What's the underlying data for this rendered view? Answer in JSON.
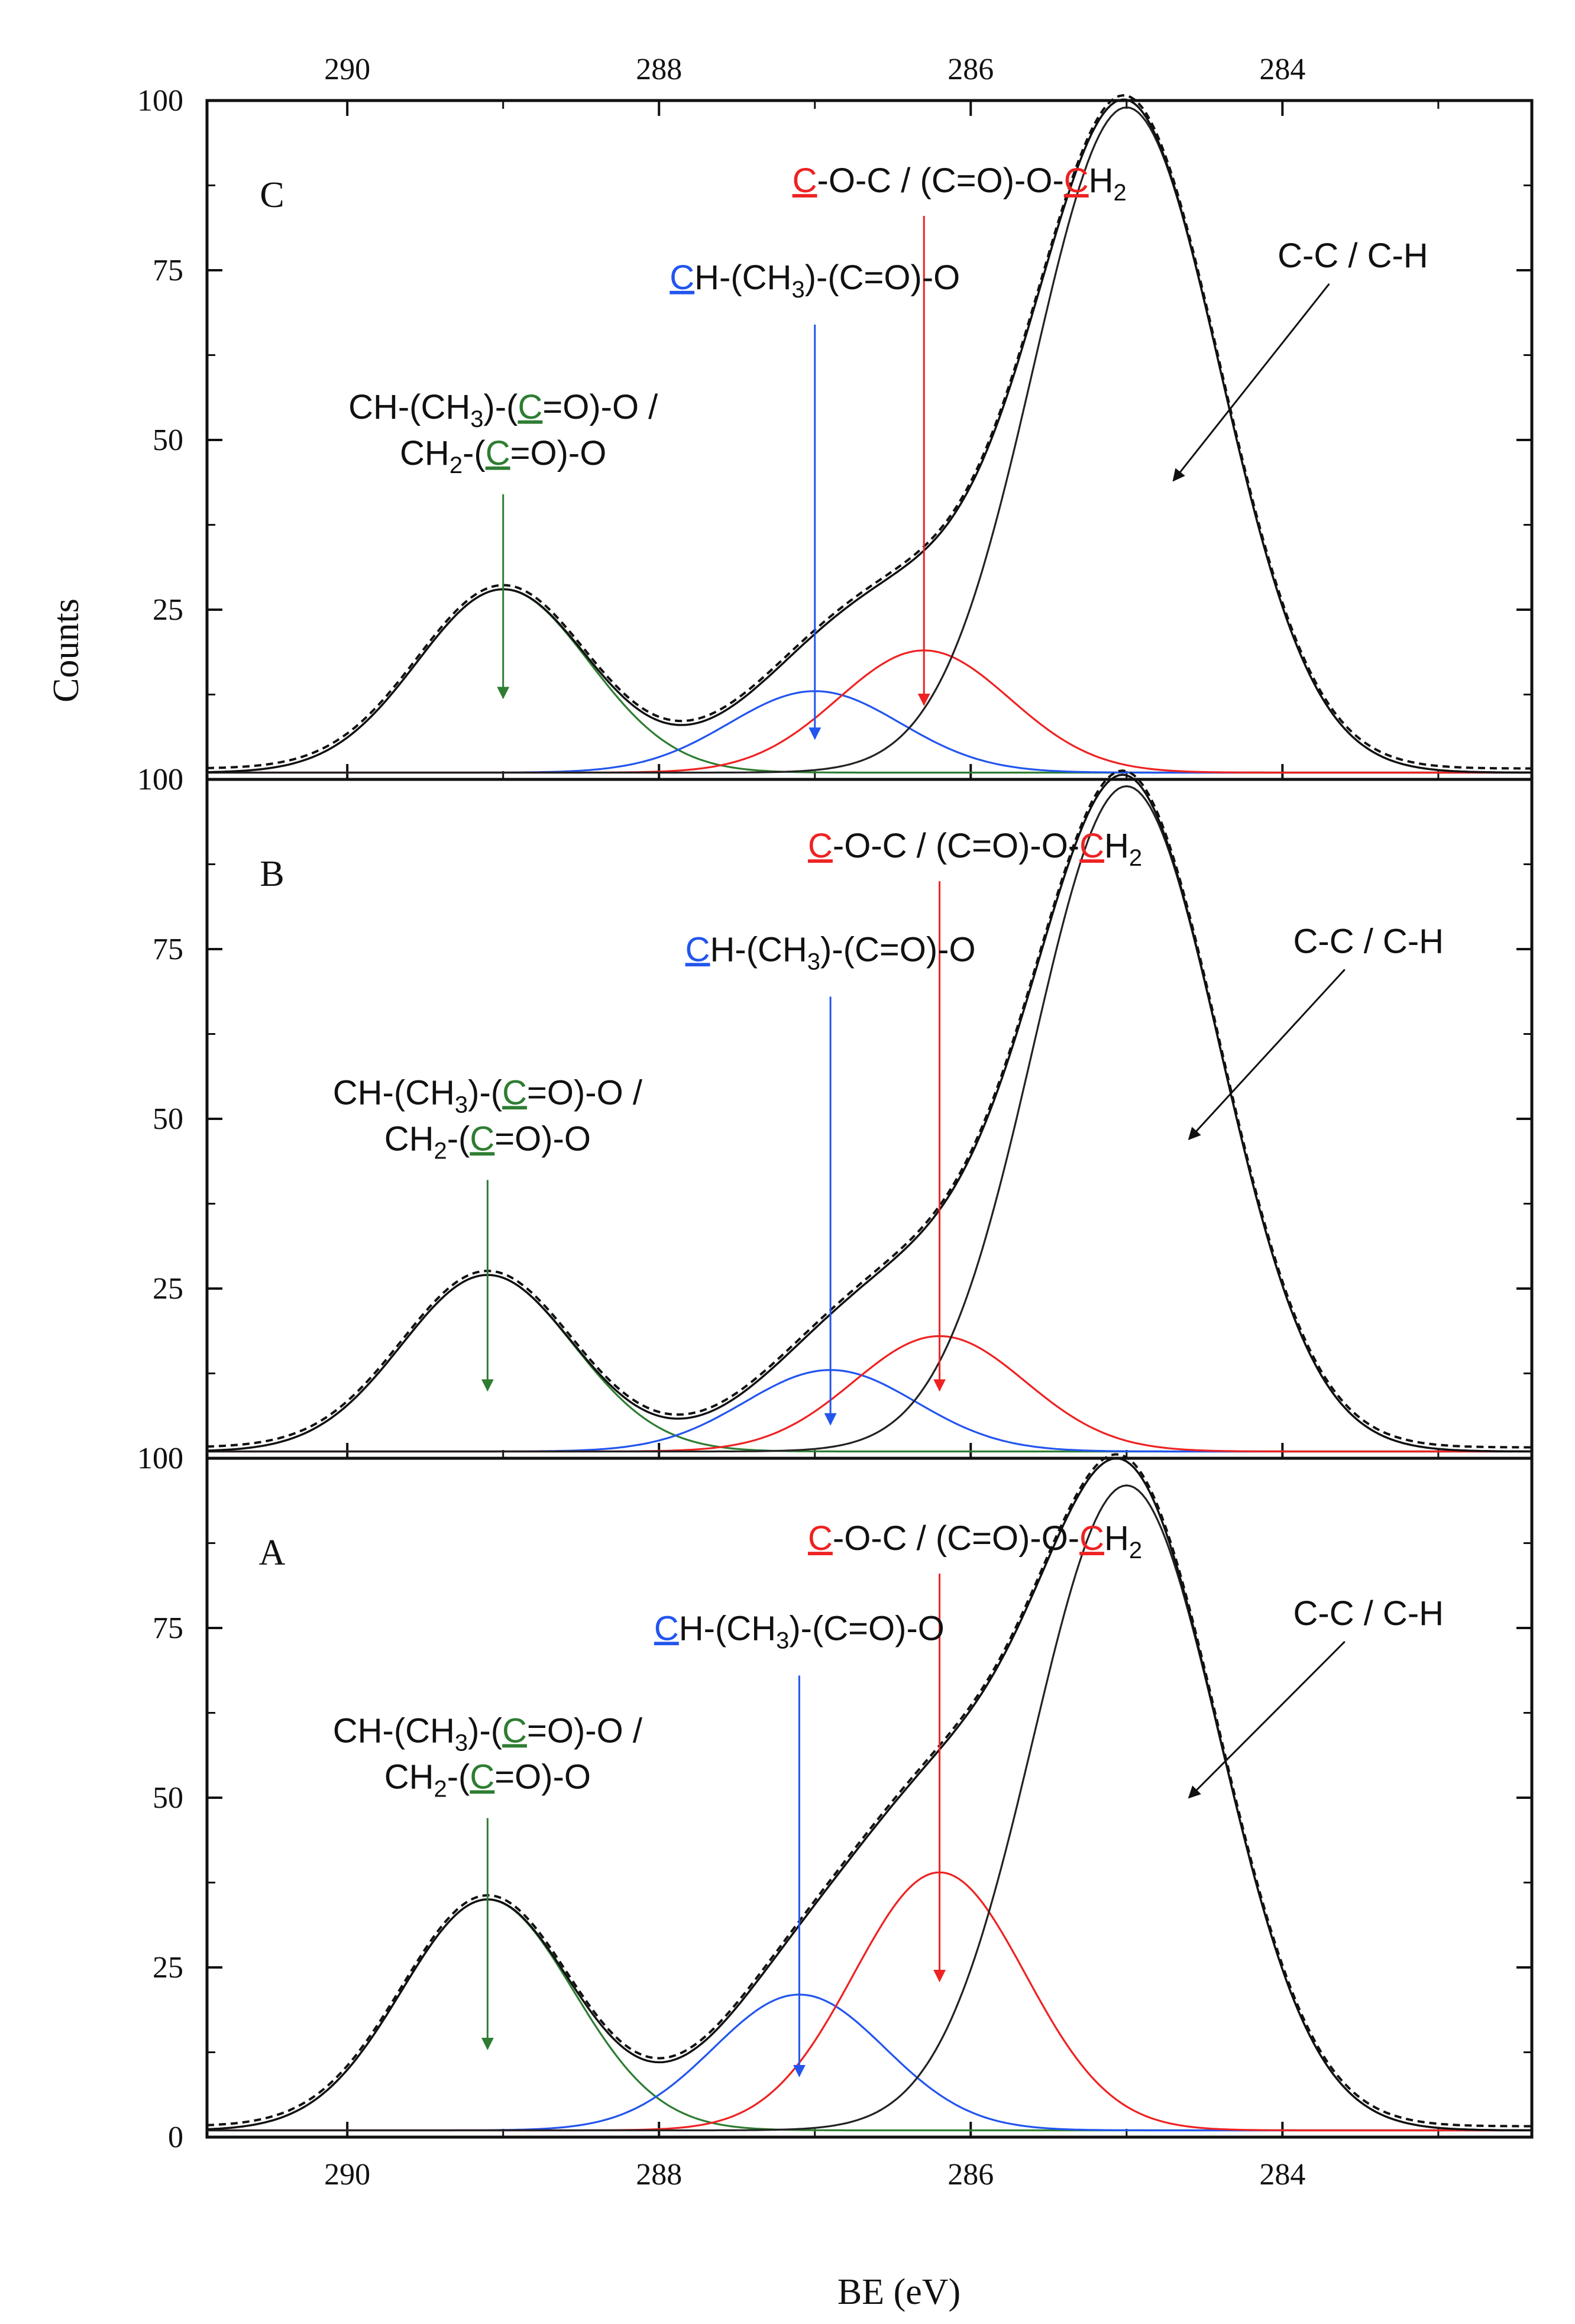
{
  "chart_data": {
    "type": "line",
    "description_axis": "XPS C1s deconvolution, reversed binding-energy axis",
    "xlabel": "BE (eV)",
    "ylabel": "Counts",
    "xlim": [
      290.9,
      282.4
    ],
    "x_ticks": [
      290,
      288,
      286,
      284
    ],
    "x_tick_labels": [
      "290",
      "288",
      "286",
      "284"
    ],
    "y_ticks": [
      0,
      25,
      50,
      75,
      100
    ],
    "y_tick_labels": [
      "0",
      "25",
      "50",
      "75",
      "100"
    ],
    "baseline_label": "100",
    "panels": [
      {
        "id": "C",
        "label": "C",
        "ylim": [
          0,
          100
        ],
        "baseline": 1,
        "series": [
          {
            "name": "CH-(CH3)-(C=O)-O / CH2-(C=O)-O",
            "color": "#2e7d32",
            "center": 289.0,
            "amplitude": 27,
            "sigma": 0.55
          },
          {
            "name": "CH-(CH3)-(C=O)-O",
            "color": "#2255ee",
            "center": 287.0,
            "amplitude": 12,
            "sigma": 0.55
          },
          {
            "name": "C-O-C / (C=O)-O-CH2",
            "color": "#ee2222",
            "center": 286.3,
            "amplitude": 18,
            "sigma": 0.55
          },
          {
            "name": "C-C / C-H",
            "color": "#222222",
            "center": 285.0,
            "amplitude": 98,
            "sigma": 0.6
          }
        ],
        "arrows": [
          {
            "label_key": "green",
            "x": 289.0,
            "y_from": 42,
            "y_to": 12
          },
          {
            "label_key": "blue",
            "x": 287.0,
            "y_from": 67,
            "y_to": 6
          },
          {
            "label_key": "red",
            "x": 286.3,
            "y_from": 83,
            "y_to": 11
          },
          {
            "label_key": "black",
            "x_from": 283.7,
            "y_from": 73,
            "x_to": 284.7,
            "y_to": 44
          }
        ]
      },
      {
        "id": "B",
        "label": "B",
        "ylim": [
          0,
          100
        ],
        "baseline": 1,
        "series": [
          {
            "name": "CH-(CH3)-(C=O)-O / CH2-(C=O)-O",
            "color": "#2e7d32",
            "center": 289.1,
            "amplitude": 26,
            "sigma": 0.55
          },
          {
            "name": "CH-(CH3)-(C=O)-O",
            "color": "#2255ee",
            "center": 286.9,
            "amplitude": 12,
            "sigma": 0.55
          },
          {
            "name": "C-O-C / (C=O)-O-CH2",
            "color": "#ee2222",
            "center": 286.2,
            "amplitude": 17,
            "sigma": 0.55
          },
          {
            "name": "C-C / C-H",
            "color": "#222222",
            "center": 285.0,
            "amplitude": 98,
            "sigma": 0.6
          }
        ],
        "arrows": [
          {
            "label_key": "green",
            "x": 289.1,
            "y_from": 41,
            "y_to": 10
          },
          {
            "label_key": "blue",
            "x": 286.9,
            "y_from": 68,
            "y_to": 5
          },
          {
            "label_key": "red",
            "x": 286.2,
            "y_from": 85,
            "y_to": 10
          },
          {
            "label_key": "black",
            "x_from": 283.6,
            "y_from": 72,
            "x_to": 284.6,
            "y_to": 47
          }
        ]
      },
      {
        "id": "A",
        "label": "A",
        "ylim": [
          0,
          100
        ],
        "baseline": 1,
        "series": [
          {
            "name": "CH-(CH3)-(C=O)-O / CH2-(C=O)-O",
            "color": "#2e7d32",
            "center": 289.1,
            "amplitude": 34,
            "sigma": 0.55
          },
          {
            "name": "CH-(CH3)-(C=O)-O",
            "color": "#2255ee",
            "center": 287.1,
            "amplitude": 20,
            "sigma": 0.55
          },
          {
            "name": "C-O-C / (C=O)-O-CH2",
            "color": "#ee2222",
            "center": 286.2,
            "amplitude": 38,
            "sigma": 0.55
          },
          {
            "name": "C-C / C-H",
            "color": "#222222",
            "center": 285.0,
            "amplitude": 95,
            "sigma": 0.6
          }
        ],
        "arrows": [
          {
            "label_key": "green",
            "x": 289.1,
            "y_from": 47,
            "y_to": 13
          },
          {
            "label_key": "blue",
            "x": 287.1,
            "y_from": 68,
            "y_to": 9
          },
          {
            "label_key": "red",
            "x": 286.2,
            "y_from": 83,
            "y_to": 23
          },
          {
            "label_key": "black",
            "x_from": 283.6,
            "y_from": 73,
            "x_to": 284.6,
            "y_to": 50
          }
        ]
      }
    ]
  },
  "labels": {
    "green": {
      "line1": [
        "CH-(CH",
        "3",
        ")-(",
        "C",
        "=O)-O /"
      ],
      "line2": [
        "CH",
        "2",
        "-(",
        "C",
        "=O)-O"
      ],
      "color": "#2e7d32"
    },
    "blue": {
      "parts": [
        "C",
        "H-(CH",
        "3",
        ")-(C=O)-O"
      ],
      "color": "#2255ee"
    },
    "red": {
      "parts": [
        "C",
        "-O-C / (C=O)-O-",
        "C",
        "H",
        "2"
      ],
      "color": "#ee2222"
    },
    "black": {
      "text": "C-C / C-H",
      "color": "#111111"
    }
  },
  "colors": {
    "envelope": "#111111",
    "frame": "#111111"
  }
}
